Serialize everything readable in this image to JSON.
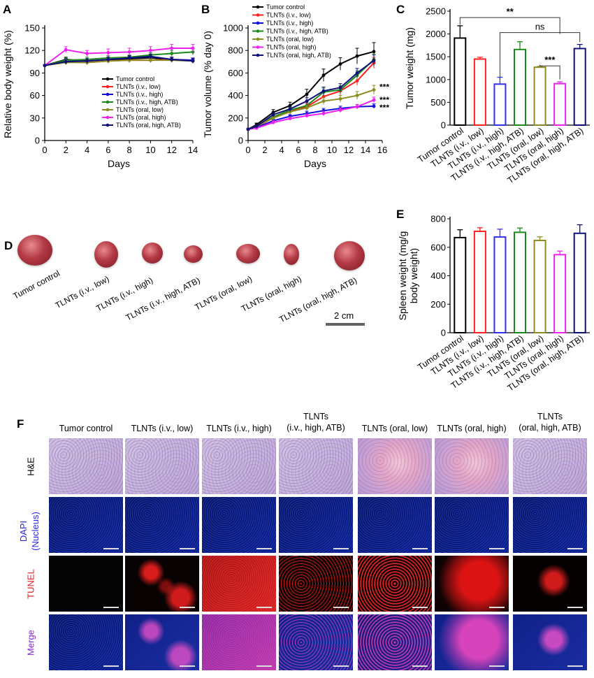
{
  "panels": {
    "a": "A",
    "b": "B",
    "c": "C",
    "d": "D",
    "e": "E",
    "f": "F"
  },
  "chart_data": [
    {
      "id": "A",
      "type": "line",
      "xlabel": "Days",
      "ylabel": "Relative body weight (%)",
      "xlim": [
        0,
        14
      ],
      "ylim": [
        0,
        150
      ],
      "xticks": [
        "0",
        "2",
        "4",
        "6",
        "8",
        "10",
        "12",
        "14"
      ],
      "yticks": [
        "0",
        "30",
        "60",
        "90",
        "120",
        "150"
      ],
      "legend_position": "bottom-right",
      "x": [
        0,
        2,
        4,
        6,
        8,
        10,
        12,
        14
      ],
      "series": [
        {
          "name": "Tumor control",
          "color": "#000000",
          "values": [
            100,
            108,
            106,
            107,
            109,
            110,
            108,
            106
          ],
          "errors": [
            1,
            3,
            3,
            3,
            3,
            3,
            3,
            3
          ]
        },
        {
          "name": "TLNTs (i.v., low)",
          "color": "#ff2020",
          "values": [
            100,
            105,
            104,
            106,
            107,
            107,
            108,
            107
          ],
          "errors": [
            1,
            3,
            3,
            3,
            3,
            3,
            3,
            3
          ]
        },
        {
          "name": "TLNTs (i.v., high)",
          "color": "#1010e0",
          "values": [
            100,
            106,
            106,
            108,
            110,
            112,
            108,
            107
          ],
          "errors": [
            1,
            3,
            3,
            3,
            3,
            3,
            3,
            3
          ]
        },
        {
          "name": "TLNTs (i.v., high, ATB)",
          "color": "#1a8a1a",
          "values": [
            100,
            107,
            108,
            110,
            111,
            114,
            116,
            118
          ],
          "errors": [
            1,
            3,
            3,
            3,
            3,
            3,
            4,
            4
          ]
        },
        {
          "name": "TLNTs (oral, low)",
          "color": "#8c8c20",
          "values": [
            100,
            104,
            104,
            106,
            107,
            107,
            107,
            106
          ],
          "errors": [
            1,
            3,
            3,
            3,
            3,
            3,
            3,
            3
          ]
        },
        {
          "name": "TLNTs (oral, high)",
          "color": "#ee22ee",
          "values": [
            100,
            121,
            116,
            117,
            118,
            120,
            123,
            123
          ],
          "errors": [
            1,
            4,
            4,
            5,
            5,
            5,
            5,
            5
          ]
        },
        {
          "name": "TLNTs (oral, high, ATB)",
          "color": "#10107a",
          "values": [
            100,
            105,
            106,
            108,
            110,
            112,
            108,
            106
          ],
          "errors": [
            1,
            3,
            3,
            3,
            3,
            3,
            3,
            3
          ]
        }
      ]
    },
    {
      "id": "B",
      "type": "line",
      "xlabel": "Days",
      "ylabel": "Tumor volume (% day 0)",
      "xlim": [
        0,
        16
      ],
      "ylim": [
        0,
        1000
      ],
      "xticks": [
        "0",
        "2",
        "4",
        "6",
        "8",
        "10",
        "12",
        "14",
        "16"
      ],
      "yticks": [
        "0",
        "200",
        "400",
        "600",
        "800",
        "1000"
      ],
      "legend_position": "top-left",
      "annotations": [
        "***",
        "***",
        "***"
      ],
      "x": [
        0,
        1,
        3,
        5,
        7,
        9,
        11,
        13,
        15
      ],
      "series": [
        {
          "name": "Tumor control",
          "color": "#000000",
          "values": [
            100,
            140,
            250,
            310,
            410,
            580,
            680,
            750,
            790
          ],
          "errors": [
            5,
            15,
            25,
            30,
            45,
            55,
            55,
            70,
            80
          ]
        },
        {
          "name": "TLNTs (i.v., low)",
          "color": "#ff2020",
          "values": [
            100,
            120,
            200,
            260,
            300,
            390,
            440,
            530,
            690
          ],
          "errors": [
            5,
            10,
            20,
            25,
            30,
            35,
            35,
            40,
            50
          ]
        },
        {
          "name": "TLNTs (i.v., high)",
          "color": "#1010e0",
          "values": [
            100,
            115,
            175,
            215,
            240,
            265,
            285,
            300,
            305
          ],
          "errors": [
            5,
            10,
            15,
            15,
            20,
            20,
            20,
            20,
            20
          ]
        },
        {
          "name": "TLNTs (i.v., high, ATB)",
          "color": "#1a8a1a",
          "values": [
            100,
            125,
            210,
            270,
            310,
            430,
            450,
            580,
            720
          ],
          "errors": [
            5,
            10,
            20,
            25,
            30,
            35,
            35,
            40,
            50
          ]
        },
        {
          "name": "TLNTs (oral, low)",
          "color": "#8c8c20",
          "values": [
            100,
            125,
            200,
            255,
            290,
            350,
            370,
            400,
            450
          ],
          "errors": [
            5,
            10,
            20,
            20,
            25,
            30,
            30,
            35,
            40
          ]
        },
        {
          "name": "TLNTs (oral, high)",
          "color": "#ee22ee",
          "values": [
            100,
            110,
            160,
            195,
            220,
            240,
            270,
            300,
            360
          ],
          "errors": [
            5,
            10,
            15,
            15,
            15,
            20,
            20,
            20,
            25
          ]
        },
        {
          "name": "TLNTs (oral, high, ATB)",
          "color": "#10107a",
          "values": [
            100,
            125,
            230,
            280,
            350,
            440,
            470,
            600,
            710
          ],
          "errors": [
            5,
            10,
            20,
            25,
            30,
            35,
            35,
            40,
            50
          ]
        }
      ]
    },
    {
      "id": "C",
      "type": "bar",
      "ylabel": "Tumor  weight (mg)",
      "ylim": [
        0,
        2500
      ],
      "yticks": [
        "0",
        "500",
        "1000",
        "1500",
        "2000",
        "2500"
      ],
      "categories": [
        "Tumor control",
        "TLNTs (i.v., low)",
        "TLNTs (i.v., high)",
        "TLNTs (i.v., high, ATB)",
        "TLNTs (oral, low)",
        "TLNTs (oral, high)",
        "TLNTs (oral, high, ATB)"
      ],
      "values": [
        1910,
        1450,
        900,
        1660,
        1270,
        910,
        1680
      ],
      "errors": [
        270,
        40,
        150,
        170,
        20,
        40,
        90
      ],
      "colors": [
        "#000000",
        "#ff2020",
        "#3030f0",
        "#1a8a1a",
        "#8c8c20",
        "#ee22ee",
        "#10107a"
      ],
      "brackets": [
        {
          "from": 0,
          "to": 5,
          "label": "**"
        },
        {
          "from": 2,
          "to": 6,
          "label": "ns"
        },
        {
          "from": 4,
          "to": 5,
          "label": "***"
        }
      ]
    },
    {
      "id": "E",
      "type": "bar",
      "ylabel": "Spleen weight  (mg/g body weight)",
      "ylabel_lines": [
        "Spleen weight  (mg/g",
        "body weight)"
      ],
      "ylim": [
        0,
        800
      ],
      "yticks": [
        "0",
        "200",
        "400",
        "600",
        "800"
      ],
      "categories": [
        "Tumor control",
        "TLNTs (i.v., low)",
        "TLNTs (i.v., high)",
        "TLNTs (i.v., high, ATB)",
        "TLNTs (oral, low)",
        "TLNTs (oral, high)",
        "TLNTs (oral, high, ATB)"
      ],
      "values": [
        668,
        712,
        672,
        705,
        648,
        548,
        698
      ],
      "errors": [
        55,
        25,
        55,
        30,
        25,
        25,
        60
      ],
      "colors": [
        "#000000",
        "#ff2020",
        "#3030f0",
        "#1a8a1a",
        "#8c8c20",
        "#ee22ee",
        "#10107a"
      ]
    }
  ],
  "tumor_photos": {
    "labels": [
      "Tumor control",
      "TLNTs (i.v., low)",
      "TLNTs (i.v., high)",
      "TLNTs (i.v., high, ATB)",
      "TLNTs (oral, low)",
      "TLNTs (oral, high)",
      "TLNTs (oral, high, ATB)"
    ],
    "scale_label": "2 cm"
  },
  "histology": {
    "columns": [
      {
        "line1": "Tumor control",
        "line2": ""
      },
      {
        "line1": "TLNTs (i.v., low)",
        "line2": ""
      },
      {
        "line1": "TLNTs (i.v., high)",
        "line2": ""
      },
      {
        "line1": "TLNTs",
        "line2": "(i.v., high, ATB)"
      },
      {
        "line1": "TLNTs (oral, low)",
        "line2": ""
      },
      {
        "line1": "TLNTs (oral, high)",
        "line2": ""
      },
      {
        "line1": "TLNTs",
        "line2": "(oral, high, ATB)"
      }
    ],
    "rows": [
      {
        "line1": "H&E",
        "line2": "",
        "color": "#000000"
      },
      {
        "line1": "DAPI",
        "line2": "(Nucleus)",
        "color": "#2a2ae0"
      },
      {
        "line1": "TUNEL",
        "line2": "",
        "color": "#e02020"
      },
      {
        "line1": "Merge",
        "line2": "",
        "color": "#8a2ad0"
      }
    ]
  }
}
